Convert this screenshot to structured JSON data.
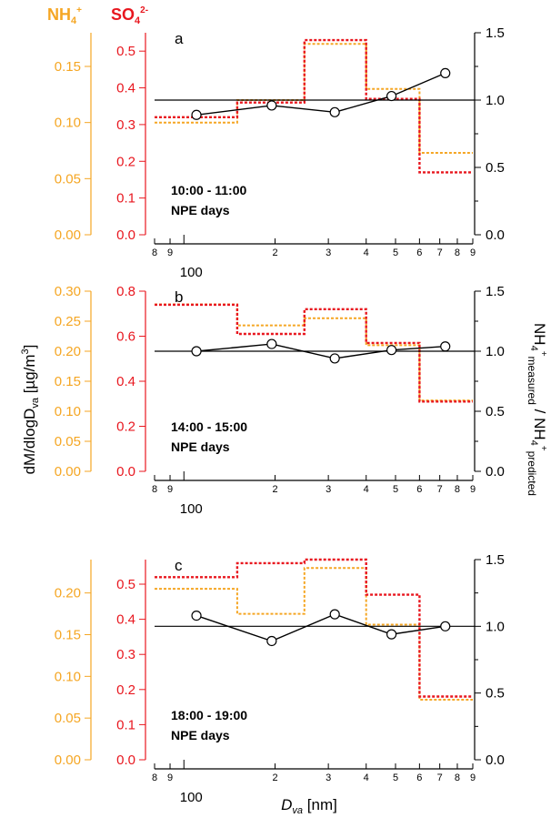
{
  "header": {
    "nh4_label": "NH",
    "nh4_sub": "4",
    "nh4_sup": "+",
    "so4_label": "SO",
    "so4_sub": "4",
    "so4_sup": "2-"
  },
  "colors": {
    "nh4": "#f5a623",
    "so4": "#e8171f",
    "ratio": "#000000",
    "axis": "#000000"
  },
  "axes": {
    "x_label_main": "D",
    "x_label_sub": "va",
    "x_label_unit": " [nm]",
    "x_scale": "log",
    "x_range_nm": [
      80,
      900
    ],
    "x_major_label": "100",
    "x_tick_labels": [
      {
        "v": 80,
        "t": "8"
      },
      {
        "v": 90,
        "t": "9"
      },
      {
        "v": 200,
        "t": "2"
      },
      {
        "v": 300,
        "t": "3"
      },
      {
        "v": 400,
        "t": "4"
      },
      {
        "v": 500,
        "t": "5"
      },
      {
        "v": 600,
        "t": "6"
      },
      {
        "v": 700,
        "t": "7"
      },
      {
        "v": 800,
        "t": "8"
      },
      {
        "v": 900,
        "t": "9"
      }
    ],
    "y_label_left": "dM/dlogD",
    "y_label_left_sub": "va",
    "y_label_left_unit": " [µg/m",
    "y_label_left_sup": "3",
    "y_label_left_close": "]",
    "y_label_right_a": "NH",
    "y_label_right_a_sub": "4",
    "y_label_right_a_sup": "+",
    "y_label_right_a_meas": "measured",
    "y_label_right_sep": " / NH",
    "y_label_right_b_sub": "4",
    "y_label_right_b_sup": "+",
    "y_label_right_b_pred": "predicted"
  },
  "chart_data": [
    {
      "type": "line",
      "panel": "a",
      "annotation_line1": "10:00 - 11:00",
      "annotation_line2": "NPE days",
      "x_bin_edges_nm": [
        80,
        150,
        250,
        400,
        600,
        900
      ],
      "nh4": {
        "ylim": [
          0,
          0.18
        ],
        "ticks": [
          "0.00",
          "0.05",
          "0.10",
          "0.15"
        ],
        "values": [
          0.1,
          0.12,
          0.17,
          0.13,
          0.073
        ]
      },
      "so4": {
        "ylim": [
          0,
          0.55
        ],
        "ticks": [
          "0.0",
          "0.1",
          "0.2",
          "0.3",
          "0.4",
          "0.5"
        ],
        "values": [
          0.32,
          0.36,
          0.53,
          0.37,
          0.17
        ]
      },
      "ratio": {
        "ylim": [
          0,
          1.5
        ],
        "ticks": [
          "0.0",
          "0.5",
          "1.0",
          "1.5"
        ],
        "reference": 1.0,
        "x_nm": [
          110,
          195,
          315,
          485,
          730
        ],
        "values": [
          0.89,
          0.96,
          0.91,
          1.03,
          1.2
        ]
      }
    },
    {
      "type": "line",
      "panel": "b",
      "annotation_line1": "14:00 - 15:00",
      "annotation_line2": "NPE days",
      "x_bin_edges_nm": [
        80,
        150,
        250,
        400,
        600,
        900
      ],
      "nh4": {
        "ylim": [
          0,
          0.3
        ],
        "ticks": [
          "0.00",
          "0.05",
          "0.10",
          "0.15",
          "0.20",
          "0.25",
          "0.30"
        ],
        "values": [
          0.278,
          0.243,
          0.255,
          0.21,
          0.118
        ]
      },
      "so4": {
        "ylim": [
          0,
          0.8
        ],
        "ticks": [
          "0.0",
          "0.2",
          "0.4",
          "0.6",
          "0.8"
        ],
        "values": [
          0.74,
          0.61,
          0.72,
          0.57,
          0.31
        ]
      },
      "ratio": {
        "ylim": [
          0,
          1.5
        ],
        "ticks": [
          "0.0",
          "0.5",
          "1.0",
          "1.5"
        ],
        "reference": 1.0,
        "x_nm": [
          110,
          195,
          315,
          485,
          730
        ],
        "values": [
          1.0,
          1.06,
          0.94,
          1.01,
          1.04
        ]
      }
    },
    {
      "type": "line",
      "panel": "c",
      "annotation_line1": "18:00 - 19:00",
      "annotation_line2": "NPE days",
      "x_bin_edges_nm": [
        80,
        150,
        250,
        400,
        600,
        900
      ],
      "nh4": {
        "ylim": [
          0,
          0.24
        ],
        "ticks": [
          "0.00",
          "0.05",
          "0.10",
          "0.15",
          "0.20"
        ],
        "values": [
          0.205,
          0.175,
          0.23,
          0.162,
          0.072
        ]
      },
      "so4": {
        "ylim": [
          0,
          0.57
        ],
        "ticks": [
          "0.0",
          "0.1",
          "0.2",
          "0.3",
          "0.4",
          "0.5"
        ],
        "values": [
          0.52,
          0.56,
          0.57,
          0.47,
          0.18
        ]
      },
      "ratio": {
        "ylim": [
          0,
          1.5
        ],
        "ticks": [
          "0.0",
          "0.5",
          "1.0",
          "1.5"
        ],
        "reference": 1.0,
        "x_nm": [
          110,
          195,
          315,
          485,
          730
        ],
        "values": [
          1.08,
          0.89,
          1.09,
          0.94,
          1.0
        ]
      }
    }
  ]
}
